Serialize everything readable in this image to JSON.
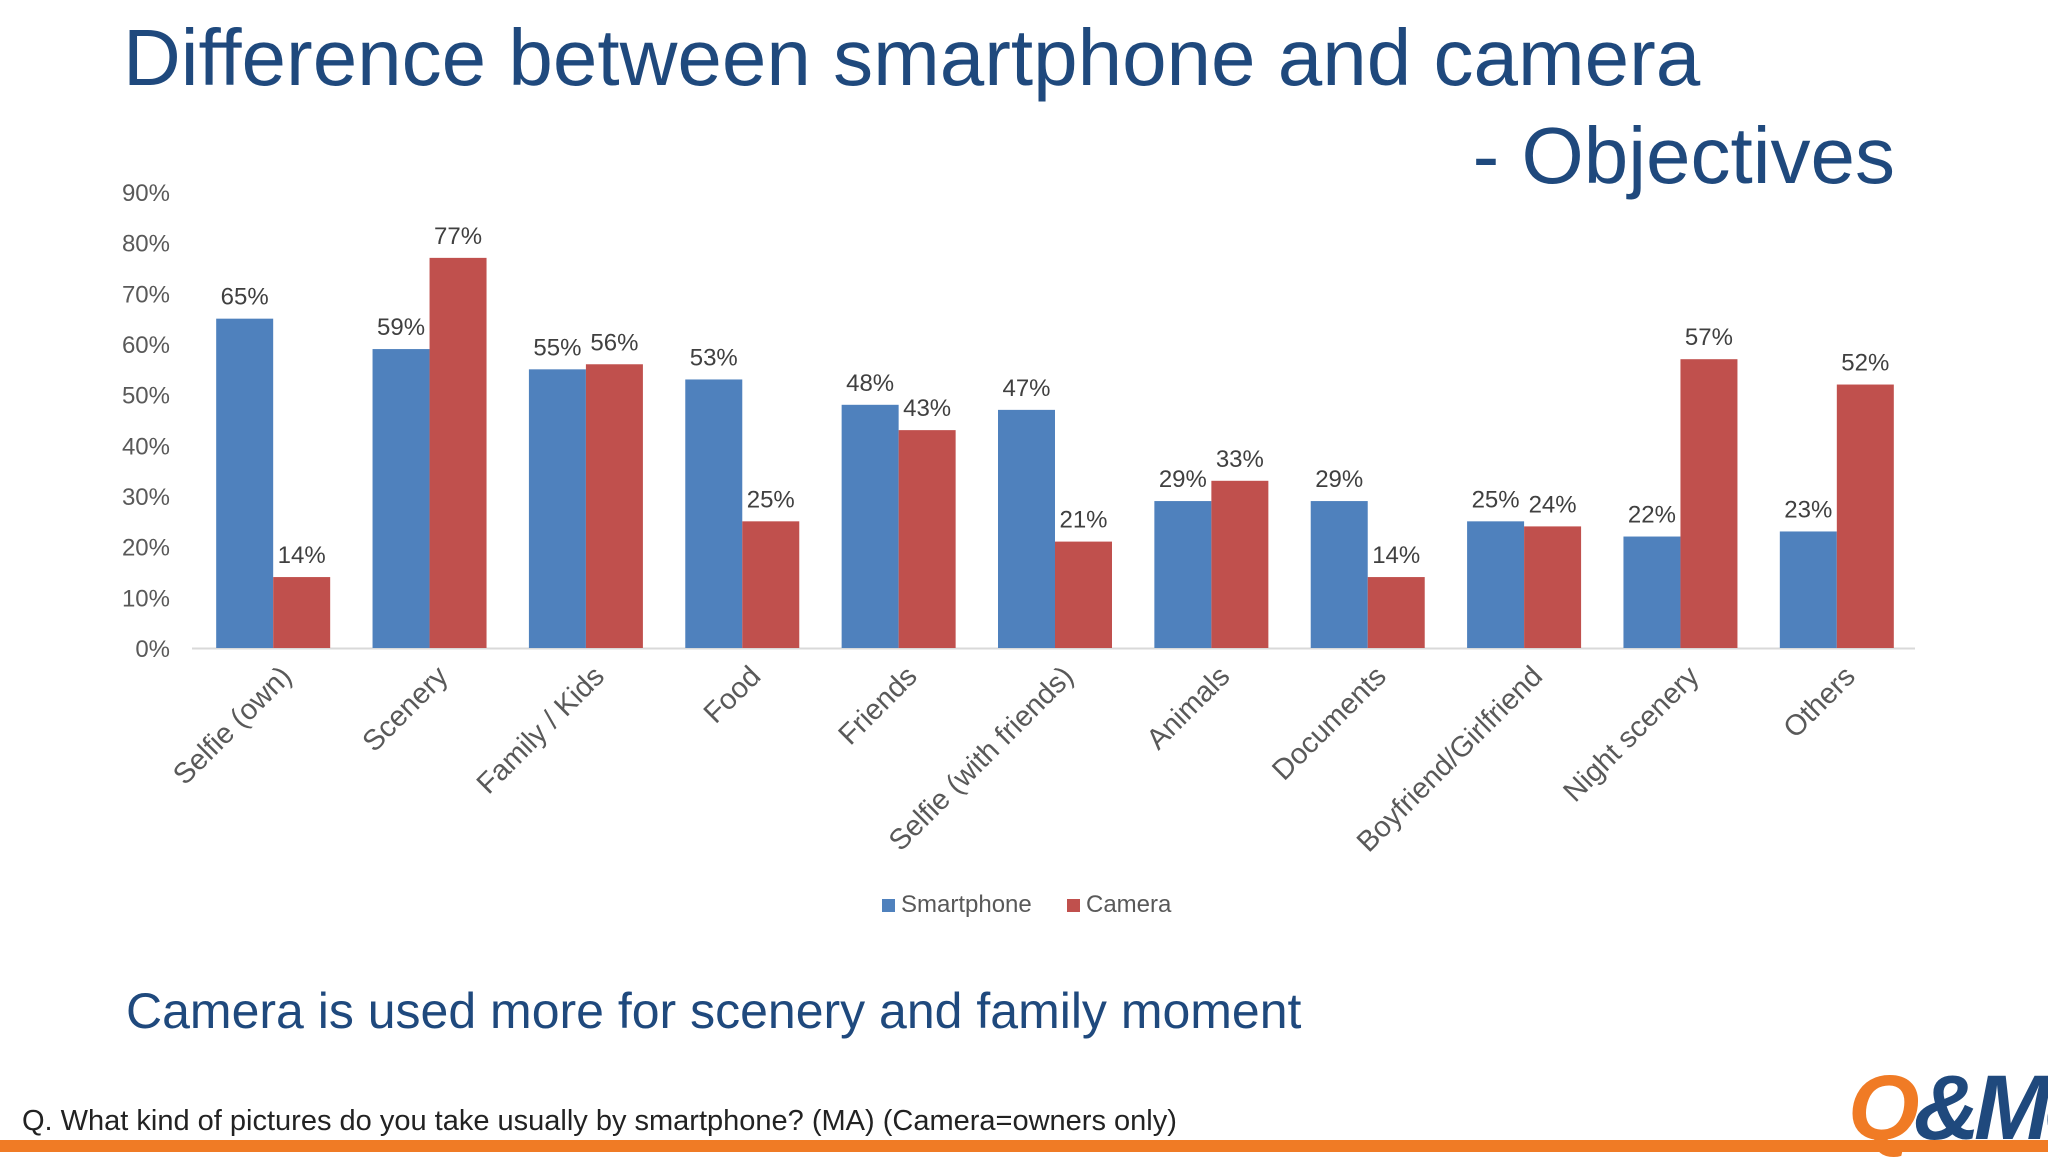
{
  "title": {
    "line1": "Difference between smartphone and camera",
    "line2": "- Objectives"
  },
  "conclusion": "Camera is used more for scenery and family moment",
  "question": "Q. What kind of pictures do you take usually by smartphone? (MA) (Camera=owners only)",
  "logo": {
    "q": "Q",
    "me": "&Me"
  },
  "colors": {
    "title": "#1f497d",
    "smartphone": "#4f81bd",
    "camera": "#c0504d",
    "accent": "#f07b25"
  },
  "chart_data": {
    "type": "bar",
    "categories": [
      "Selfie (own)",
      "Scenery",
      "Family / Kids",
      "Food",
      "Friends",
      "Selfie (with friends)",
      "Animals",
      "Documents",
      "Boyfriend/Girlfriend",
      "Night scenery",
      "Others"
    ],
    "series": [
      {
        "name": "Smartphone",
        "color": "#4f81bd",
        "values": [
          65,
          59,
          55,
          53,
          48,
          47,
          29,
          29,
          25,
          22,
          23
        ]
      },
      {
        "name": "Camera",
        "color": "#c0504d",
        "values": [
          14,
          77,
          56,
          25,
          43,
          21,
          33,
          14,
          24,
          57,
          52
        ]
      }
    ],
    "ylim": [
      0,
      90
    ],
    "yticks": [
      0,
      10,
      20,
      30,
      40,
      50,
      60,
      70,
      80,
      90
    ],
    "tick_suffix": "%",
    "value_suffix": "%",
    "legend": "bottom",
    "grid": false
  }
}
